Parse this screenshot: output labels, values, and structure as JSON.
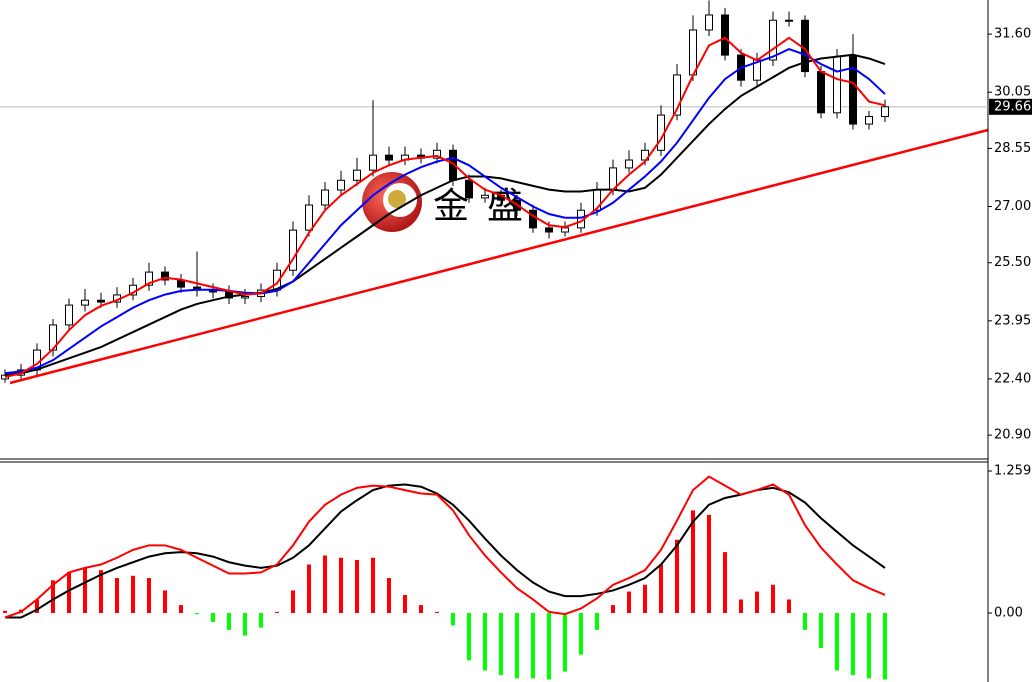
{
  "chart_data": [
    {
      "type": "candlestick",
      "watermark": "金盛",
      "open": [
        22.4,
        22.5,
        22.64,
        23.17,
        23.84,
        24.37,
        24.5,
        24.45,
        24.64,
        24.9,
        25.25,
        25.04,
        24.85,
        24.77,
        24.72,
        24.56,
        24.6,
        24.77,
        25.3,
        26.37,
        27.04,
        27.44,
        27.7,
        27.97,
        28.37,
        28.24,
        28.37,
        28.29,
        28.5,
        27.7,
        27.23,
        27.3,
        27.17,
        26.9,
        26.43,
        26.32,
        26.43,
        26.9,
        27.44,
        28.03,
        28.24,
        28.5,
        29.44,
        30.51,
        31.71,
        32.11,
        31.04,
        30.37,
        30.91,
        31.97,
        31.97,
        30.6,
        29.5,
        31.0,
        29.2,
        29.4
      ],
      "high": [
        22.65,
        22.8,
        23.35,
        24.0,
        24.55,
        24.8,
        24.7,
        24.85,
        25.1,
        25.5,
        25.4,
        25.2,
        25.8,
        24.95,
        24.9,
        24.8,
        24.95,
        25.5,
        26.6,
        27.3,
        27.65,
        27.95,
        28.3,
        29.84,
        28.6,
        28.6,
        28.55,
        28.7,
        28.65,
        27.85,
        27.5,
        27.45,
        27.3,
        27.05,
        26.6,
        26.6,
        27.1,
        27.65,
        28.25,
        28.5,
        28.7,
        29.7,
        30.8,
        32.1,
        32.5,
        32.3,
        31.2,
        31.1,
        32.2,
        32.2,
        32.1,
        30.75,
        31.2,
        31.6,
        29.55,
        29.85
      ],
      "low": [
        22.3,
        22.4,
        22.5,
        23.0,
        23.7,
        24.2,
        24.3,
        24.3,
        24.5,
        24.75,
        24.9,
        24.7,
        24.6,
        24.55,
        24.4,
        24.4,
        24.45,
        24.6,
        25.15,
        26.2,
        26.9,
        27.3,
        27.55,
        27.8,
        28.1,
        28.1,
        28.15,
        28.15,
        27.55,
        27.1,
        27.1,
        27.0,
        26.75,
        26.3,
        26.15,
        26.2,
        26.3,
        26.75,
        27.3,
        27.9,
        28.1,
        28.35,
        29.3,
        30.35,
        31.55,
        30.9,
        30.2,
        30.2,
        30.75,
        31.8,
        30.45,
        29.35,
        29.35,
        29.05,
        29.05,
        29.25
      ],
      "close": [
        22.5,
        22.64,
        23.17,
        23.84,
        24.37,
        24.5,
        24.45,
        24.64,
        24.9,
        25.25,
        25.04,
        24.85,
        24.77,
        24.72,
        24.56,
        24.6,
        24.77,
        25.3,
        26.37,
        27.04,
        27.44,
        27.7,
        27.97,
        28.37,
        28.24,
        28.37,
        28.29,
        28.5,
        27.7,
        27.23,
        27.3,
        27.17,
        26.9,
        26.43,
        26.32,
        26.43,
        26.9,
        27.44,
        28.03,
        28.24,
        28.5,
        29.44,
        30.51,
        31.71,
        32.11,
        31.04,
        30.37,
        30.91,
        31.97,
        31.97,
        30.6,
        29.5,
        31.0,
        29.2,
        29.4,
        29.66
      ],
      "series": [
        {
          "color": "#ff0000",
          "values": [
            22.45,
            22.55,
            22.8,
            23.2,
            23.7,
            24.1,
            24.35,
            24.5,
            24.7,
            24.95,
            25.1,
            25.05,
            24.95,
            24.85,
            24.75,
            24.65,
            24.68,
            24.95,
            25.6,
            26.3,
            26.9,
            27.3,
            27.6,
            27.9,
            28.1,
            28.25,
            28.3,
            28.35,
            28.15,
            27.75,
            27.45,
            27.3,
            27.05,
            26.75,
            26.5,
            26.45,
            26.6,
            26.95,
            27.45,
            27.85,
            28.2,
            28.8,
            29.6,
            30.5,
            31.3,
            31.5,
            31.1,
            30.9,
            31.2,
            31.5,
            31.2,
            30.6,
            30.4,
            30.3,
            29.8,
            29.7
          ]
        },
        {
          "color": "#0000ff",
          "values": [
            22.55,
            22.6,
            22.7,
            22.9,
            23.2,
            23.5,
            23.8,
            24.05,
            24.3,
            24.5,
            24.65,
            24.75,
            24.78,
            24.78,
            24.75,
            24.7,
            24.68,
            24.75,
            25.0,
            25.5,
            26.0,
            26.5,
            26.9,
            27.3,
            27.6,
            27.85,
            28.05,
            28.2,
            28.3,
            28.1,
            27.8,
            27.5,
            27.25,
            27.0,
            26.8,
            26.7,
            26.7,
            26.85,
            27.1,
            27.45,
            27.8,
            28.2,
            28.7,
            29.3,
            29.9,
            30.4,
            30.7,
            30.85,
            31.0,
            31.2,
            31.05,
            30.8,
            30.6,
            30.7,
            30.4,
            30.0
          ]
        },
        {
          "color": "#000000",
          "values": [
            22.5,
            22.55,
            22.65,
            22.8,
            22.95,
            23.1,
            23.25,
            23.45,
            23.65,
            23.85,
            24.05,
            24.25,
            24.4,
            24.5,
            24.6,
            24.65,
            24.7,
            24.8,
            25.0,
            25.3,
            25.6,
            25.9,
            26.2,
            26.5,
            26.8,
            27.05,
            27.3,
            27.5,
            27.7,
            27.8,
            27.8,
            27.75,
            27.65,
            27.55,
            27.45,
            27.4,
            27.4,
            27.45,
            27.45,
            27.4,
            27.5,
            27.85,
            28.3,
            28.75,
            29.2,
            29.6,
            29.95,
            30.2,
            30.45,
            30.7,
            30.85,
            30.95,
            31.0,
            31.05,
            30.95,
            30.8
          ]
        }
      ],
      "current_price": 29.66,
      "ylim": [
        20.29,
        32.51
      ],
      "yticks": [
        {
          "value": 31.6,
          "label": "31.60"
        },
        30.05,
        28.55,
        {
          "value": 27,
          "label": "27.00"
        },
        {
          "value": 25.5,
          "label": "25.50"
        },
        23.95,
        {
          "value": 22.4,
          "label": "22.40"
        },
        {
          "value": 20.9,
          "label": "20.90"
        }
      ]
    },
    {
      "type": "macd",
      "histogram": {
        "up_color": "#ff0000",
        "down_color": "#00ff00",
        "values": [
          0.02,
          0.03,
          0.12,
          0.29,
          0.36,
          0.4,
          0.38,
          0.31,
          0.33,
          0.31,
          0.2,
          0.07,
          -0.01,
          -0.08,
          -0.15,
          -0.2,
          -0.13,
          0.01,
          0.2,
          0.43,
          0.51,
          0.49,
          0.47,
          0.49,
          0.31,
          0.16,
          0.07,
          0.01,
          -0.11,
          -0.42,
          -0.51,
          -0.55,
          -0.58,
          -0.58,
          -0.59,
          -0.52,
          -0.37,
          -0.15,
          0.07,
          0.19,
          0.25,
          0.43,
          0.65,
          0.91,
          0.87,
          0.54,
          0.12,
          0.19,
          0.25,
          0.12,
          -0.15,
          -0.31,
          -0.51,
          -0.55,
          -0.58,
          -0.59
        ]
      },
      "series": [
        {
          "color": "#ff0000",
          "values": [
            -0.04,
            0.01,
            0.12,
            0.25,
            0.36,
            0.4,
            0.43,
            0.49,
            0.56,
            0.6,
            0.6,
            0.56,
            0.49,
            0.42,
            0.35,
            0.35,
            0.36,
            0.43,
            0.6,
            0.81,
            0.96,
            1.05,
            1.11,
            1.13,
            1.12,
            1.09,
            1.06,
            1.05,
            0.91,
            0.69,
            0.51,
            0.36,
            0.22,
            0.12,
            0.01,
            -0.01,
            0.04,
            0.13,
            0.25,
            0.31,
            0.38,
            0.56,
            0.82,
            1.09,
            1.21,
            1.13,
            1.05,
            1.09,
            1.14,
            1.05,
            0.78,
            0.58,
            0.43,
            0.29,
            0.22,
            0.16
          ]
        },
        {
          "color": "#000000",
          "values": [
            -0.04,
            -0.04,
            0.03,
            0.12,
            0.2,
            0.27,
            0.34,
            0.4,
            0.45,
            0.5,
            0.53,
            0.54,
            0.53,
            0.5,
            0.45,
            0.42,
            0.4,
            0.42,
            0.49,
            0.6,
            0.75,
            0.9,
            1.0,
            1.09,
            1.13,
            1.14,
            1.12,
            1.06,
            0.96,
            0.82,
            0.66,
            0.51,
            0.38,
            0.27,
            0.19,
            0.15,
            0.15,
            0.17,
            0.2,
            0.25,
            0.31,
            0.43,
            0.6,
            0.81,
            0.96,
            1.02,
            1.05,
            1.09,
            1.11,
            1.07,
            0.98,
            0.84,
            0.72,
            0.6,
            0.5,
            0.4
          ]
        }
      ],
      "ylim": [
        -0.612,
        1.348
      ],
      "yticks": [
        1.259,
        {
          "value": 0,
          "label": "0.00"
        }
      ]
    }
  ]
}
